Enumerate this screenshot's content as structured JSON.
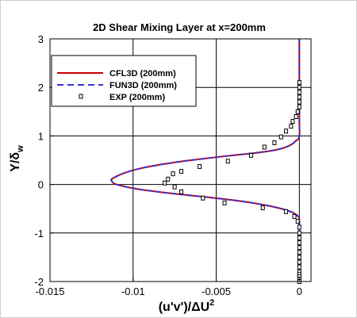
{
  "chart_data": {
    "type": "line",
    "title": "2D Shear Mixing Layer at x=200mm",
    "xlabel": "(u'v')/ΔU",
    "xlabel_exp": "2",
    "ylabel": "Y/δ",
    "ylabel_sub": "w",
    "xlim": [
      -0.015,
      0.0007
    ],
    "ylim": [
      -2,
      3
    ],
    "xticks": [
      -0.015,
      -0.01,
      -0.005,
      0
    ],
    "xtick_labels": [
      "-0.015",
      "-0.01",
      "-0.005",
      "0"
    ],
    "yticks": [
      -2,
      -1,
      0,
      1,
      2,
      3
    ],
    "ytick_labels": [
      "-2",
      "-1",
      "0",
      "1",
      "2",
      "3"
    ],
    "grid": true,
    "legend_position": "top-left",
    "series": [
      {
        "name": "CFL3D (200mm)",
        "style": "solid",
        "color": "#cc0000",
        "x": [
          0,
          0,
          0,
          -0.0002,
          -0.0006,
          -0.0013,
          -0.0024,
          -0.004,
          -0.0058,
          -0.0076,
          -0.0093,
          -0.0105,
          -0.0112,
          -0.0113,
          -0.011,
          -0.0098,
          -0.0078,
          -0.0056,
          -0.0034,
          -0.0017,
          -0.0006,
          -0.0001,
          0,
          0
        ],
        "y": [
          3,
          1.4,
          1.0,
          0.9,
          0.8,
          0.72,
          0.66,
          0.6,
          0.53,
          0.45,
          0.35,
          0.24,
          0.13,
          0.08,
          0.0,
          -0.09,
          -0.18,
          -0.26,
          -0.35,
          -0.45,
          -0.55,
          -0.65,
          -0.8,
          -2
        ]
      },
      {
        "name": "FUN3D (200mm)",
        "style": "dashed",
        "color": "#3333dd",
        "x": [
          0,
          0,
          0,
          -0.0002,
          -0.0006,
          -0.0013,
          -0.0024,
          -0.004,
          -0.0058,
          -0.0076,
          -0.0093,
          -0.0105,
          -0.0112,
          -0.0113,
          -0.011,
          -0.0098,
          -0.0078,
          -0.0056,
          -0.0034,
          -0.0017,
          -0.0006,
          -0.0001,
          0,
          0
        ],
        "y": [
          3,
          1.4,
          1.0,
          0.9,
          0.8,
          0.72,
          0.66,
          0.6,
          0.53,
          0.45,
          0.35,
          0.24,
          0.13,
          0.08,
          0.0,
          -0.09,
          -0.18,
          -0.26,
          -0.35,
          -0.45,
          -0.55,
          -0.65,
          -0.8,
          -2
        ]
      },
      {
        "name": "EXP (200mm)",
        "style": "markers",
        "color": "#000000",
        "x": [
          0,
          0,
          0,
          0,
          0,
          0,
          -0.0001,
          -0.0002,
          -0.0004,
          -0.0005,
          -0.0008,
          -0.0011,
          -0.0015,
          -0.0021,
          -0.0029,
          -0.0043,
          -0.006,
          -0.0071,
          -0.0076,
          -0.0079,
          -0.0081,
          -0.0075,
          -0.0071,
          -0.0058,
          -0.0045,
          -0.0022,
          -0.0008,
          -0.0003,
          -0.0001,
          0,
          0,
          0,
          0,
          0,
          0,
          0,
          0,
          0,
          0,
          0,
          0,
          0,
          0
        ],
        "y": [
          2.1,
          2.0,
          1.9,
          1.8,
          1.7,
          1.6,
          1.5,
          1.4,
          1.3,
          1.2,
          1.1,
          0.98,
          0.86,
          0.77,
          0.6,
          0.48,
          0.37,
          0.27,
          0.22,
          0.11,
          0.03,
          -0.05,
          -0.15,
          -0.28,
          -0.38,
          -0.48,
          -0.56,
          -0.66,
          -0.76,
          -0.88,
          -1.0,
          -1.1,
          -1.2,
          -1.3,
          -1.4,
          -1.5,
          -1.6,
          -1.7,
          -1.8,
          -1.85,
          -1.9,
          -1.95,
          -2.0
        ]
      }
    ]
  }
}
